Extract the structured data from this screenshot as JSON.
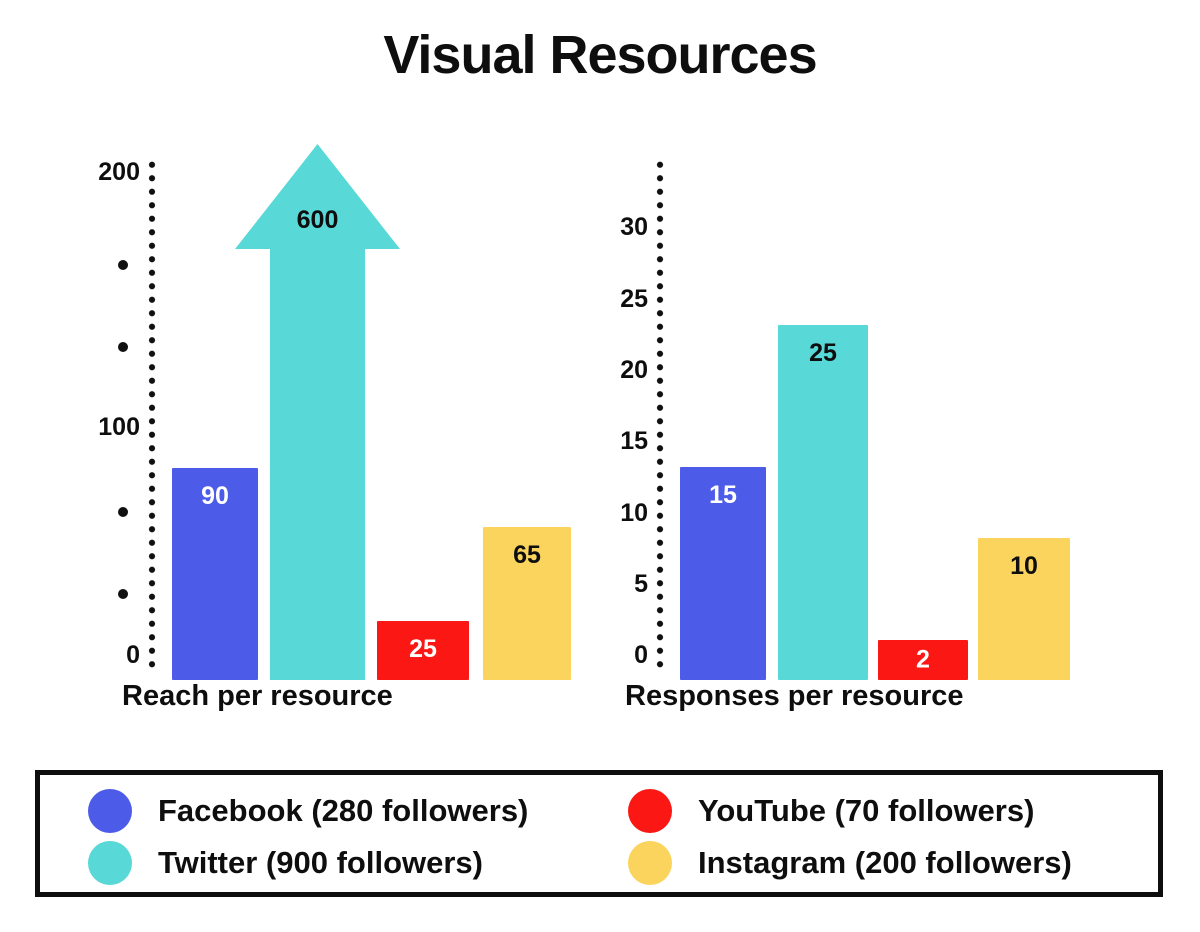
{
  "title": "Visual Resources",
  "colors": {
    "facebook": "#4d5ce8",
    "twitter": "#58d8d6",
    "youtube": "#fb1713",
    "instagram": "#fbd45e",
    "axis": "#101010",
    "background": "#ffffff"
  },
  "chart_data": [
    {
      "type": "bar",
      "title": "Reach per resource",
      "categories": [
        "Facebook",
        "Twitter",
        "YouTube",
        "Instagram"
      ],
      "values": [
        90,
        600,
        25,
        65
      ],
      "yticks": [
        "200",
        "100",
        "0"
      ],
      "ylim": [
        0,
        200
      ],
      "grid": false,
      "note": "Twitter value 600 exceeds the axis range and is drawn as an upward arrow breaking the scale"
    },
    {
      "type": "bar",
      "title": "Responses per resource",
      "categories": [
        "Facebook",
        "Twitter",
        "YouTube",
        "Instagram"
      ],
      "values": [
        15,
        25,
        2,
        10
      ],
      "yticks": [
        "30",
        "25",
        "20",
        "15",
        "10",
        "5",
        "0"
      ],
      "ylim": [
        0,
        30
      ],
      "grid": false
    }
  ],
  "legend": {
    "items": [
      {
        "label": "Facebook (280 followers)",
        "color": "#4d5ce8"
      },
      {
        "label": "YouTube (70 followers)",
        "color": "#fb1713"
      },
      {
        "label": "Twitter (900 followers)",
        "color": "#58d8d6"
      },
      {
        "label": "Instagram (200 followers)",
        "color": "#fbd45e"
      }
    ]
  }
}
